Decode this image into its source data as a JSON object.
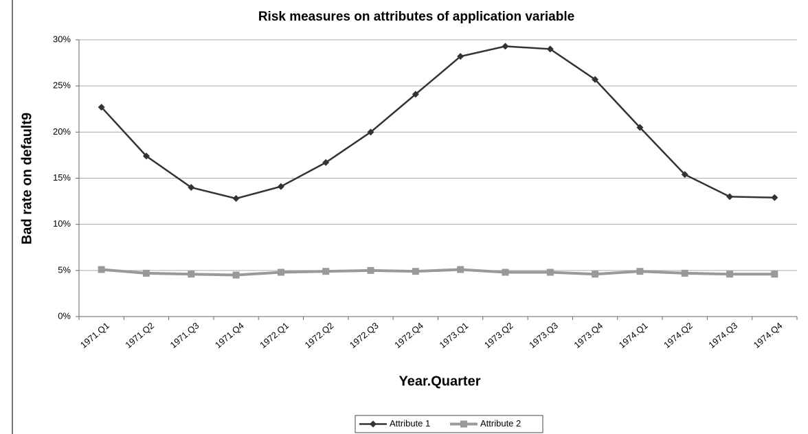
{
  "chart_data": {
    "type": "line",
    "title": "Risk measures on attributes of application variable",
    "x_label": "Year.Quarter",
    "y_label": "Bad rate on default9",
    "categories": [
      "1971.Q1",
      "1971.Q2",
      "1971.Q3",
      "1971.Q4",
      "1972.Q1",
      "1972.Q2",
      "1972.Q3",
      "1972.Q4",
      "1973.Q1",
      "1973.Q2",
      "1973.Q3",
      "1973.Q4",
      "1974.Q1",
      "1974.Q2",
      "1974.Q3",
      "1974.Q4"
    ],
    "series": [
      {
        "name": "Attribute 1",
        "color": "#333333",
        "marker": "diamond",
        "values": [
          22.7,
          17.4,
          14.0,
          12.8,
          14.1,
          16.7,
          20.0,
          24.1,
          28.2,
          29.3,
          29.0,
          25.7,
          20.5,
          15.4,
          13.0,
          12.9
        ]
      },
      {
        "name": "Attribute 2",
        "color": "#999999",
        "marker": "square",
        "values": [
          5.1,
          4.7,
          4.6,
          4.5,
          4.8,
          4.9,
          5.0,
          4.9,
          5.1,
          4.8,
          4.8,
          4.6,
          4.9,
          4.7,
          4.6,
          4.6
        ]
      }
    ],
    "ylim": [
      0,
      30
    ],
    "yticks": [
      {
        "value": 0,
        "label": "0%"
      },
      {
        "value": 5,
        "label": "5%"
      },
      {
        "value": 10,
        "label": "10%"
      },
      {
        "value": 15,
        "label": "15%"
      },
      {
        "value": 20,
        "label": "20%"
      },
      {
        "value": 25,
        "label": "25%"
      },
      {
        "value": 30,
        "label": "30%"
      }
    ],
    "grid": true,
    "legend": "bottom"
  }
}
